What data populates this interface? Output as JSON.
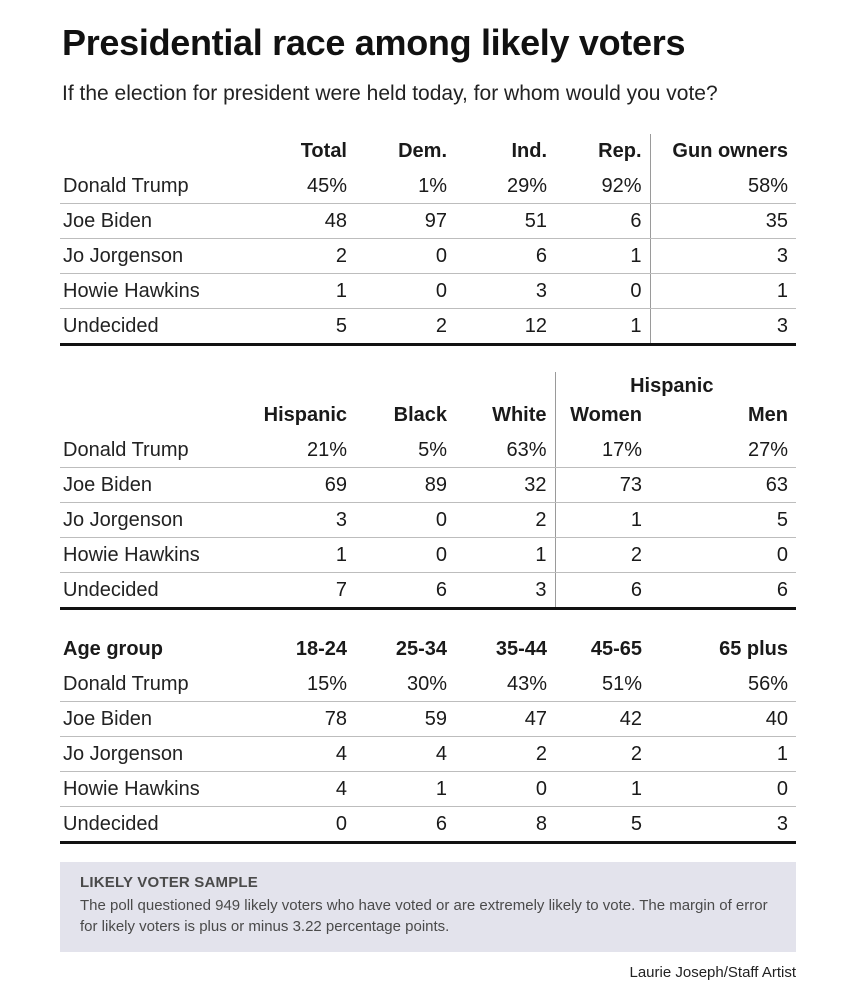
{
  "title": "Presidential race among likely voters",
  "subtitle": "If the election for president were held today, for whom would you vote?",
  "tables": [
    {
      "super_header": "",
      "headers": [
        "",
        "Total",
        "Dem.",
        "Ind.",
        "Rep.",
        "Gun owners"
      ],
      "rows": [
        [
          "Donald Trump",
          "45%",
          "1%",
          "29%",
          "92%",
          "58%"
        ],
        [
          "Joe Biden",
          "48",
          "97",
          "51",
          "6",
          "35"
        ],
        [
          "Jo Jorgenson",
          "2",
          "0",
          "6",
          "1",
          "3"
        ],
        [
          "Howie Hawkins",
          "1",
          "0",
          "3",
          "0",
          "1"
        ],
        [
          "Undecided",
          "5",
          "2",
          "12",
          "1",
          "3"
        ]
      ]
    },
    {
      "super_header": "Hispanic",
      "headers": [
        "",
        "Hispanic",
        "Black",
        "White",
        "Women",
        "Men"
      ],
      "rows": [
        [
          "Donald Trump",
          "21%",
          "5%",
          "63%",
          "17%",
          "27%"
        ],
        [
          "Joe Biden",
          "69",
          "89",
          "32",
          "73",
          "63"
        ],
        [
          "Jo Jorgenson",
          "3",
          "0",
          "2",
          "1",
          "5"
        ],
        [
          "Howie Hawkins",
          "1",
          "0",
          "1",
          "2",
          "0"
        ],
        [
          "Undecided",
          "7",
          "6",
          "3",
          "6",
          "6"
        ]
      ]
    },
    {
      "super_header": "",
      "headers": [
        "Age group",
        "18-24",
        "25-34",
        "35-44",
        "45-65",
        "65 plus"
      ],
      "rows": [
        [
          "Donald Trump",
          "15%",
          "30%",
          "43%",
          "51%",
          "56%"
        ],
        [
          "Joe Biden",
          "78",
          "59",
          "47",
          "42",
          "40"
        ],
        [
          "Jo Jorgenson",
          "4",
          "4",
          "2",
          "2",
          "1"
        ],
        [
          "Howie Hawkins",
          "4",
          "1",
          "0",
          "1",
          "0"
        ],
        [
          "Undecided",
          "0",
          "6",
          "8",
          "5",
          "3"
        ]
      ]
    }
  ],
  "note": {
    "heading": "LIKELY VOTER SAMPLE",
    "body": "The poll questioned 949 likely voters who have voted or are extremely likely to vote. The margin of error for likely voters is plus or minus 3.22 percentage points."
  },
  "credit": "Laurie Joseph/Staff Artist"
}
